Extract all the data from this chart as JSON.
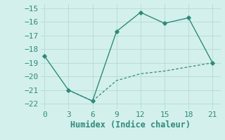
{
  "line1_x": [
    0,
    3,
    6,
    9,
    12,
    15,
    18,
    21
  ],
  "line1_y": [
    -18.5,
    -21.0,
    -21.8,
    -16.7,
    -15.3,
    -16.1,
    -15.7,
    -19.0
  ],
  "line2_x": [
    3,
    6,
    9,
    12,
    15,
    18,
    21
  ],
  "line2_y": [
    -21.0,
    -21.8,
    -20.3,
    -19.8,
    -19.6,
    -19.3,
    -19.0
  ],
  "color": "#2e8b7a",
  "bg_color": "#d4f0ec",
  "grid_color": "#b8ddd8",
  "xlabel": "Humidex (Indice chaleur)",
  "xlim": [
    -0.5,
    22
  ],
  "ylim": [
    -22.4,
    -14.7
  ],
  "xticks": [
    0,
    3,
    6,
    9,
    12,
    15,
    18,
    21
  ],
  "yticks": [
    -22,
    -21,
    -20,
    -19,
    -18,
    -17,
    -16,
    -15
  ],
  "font_size": 8,
  "label_font_size": 8.5
}
